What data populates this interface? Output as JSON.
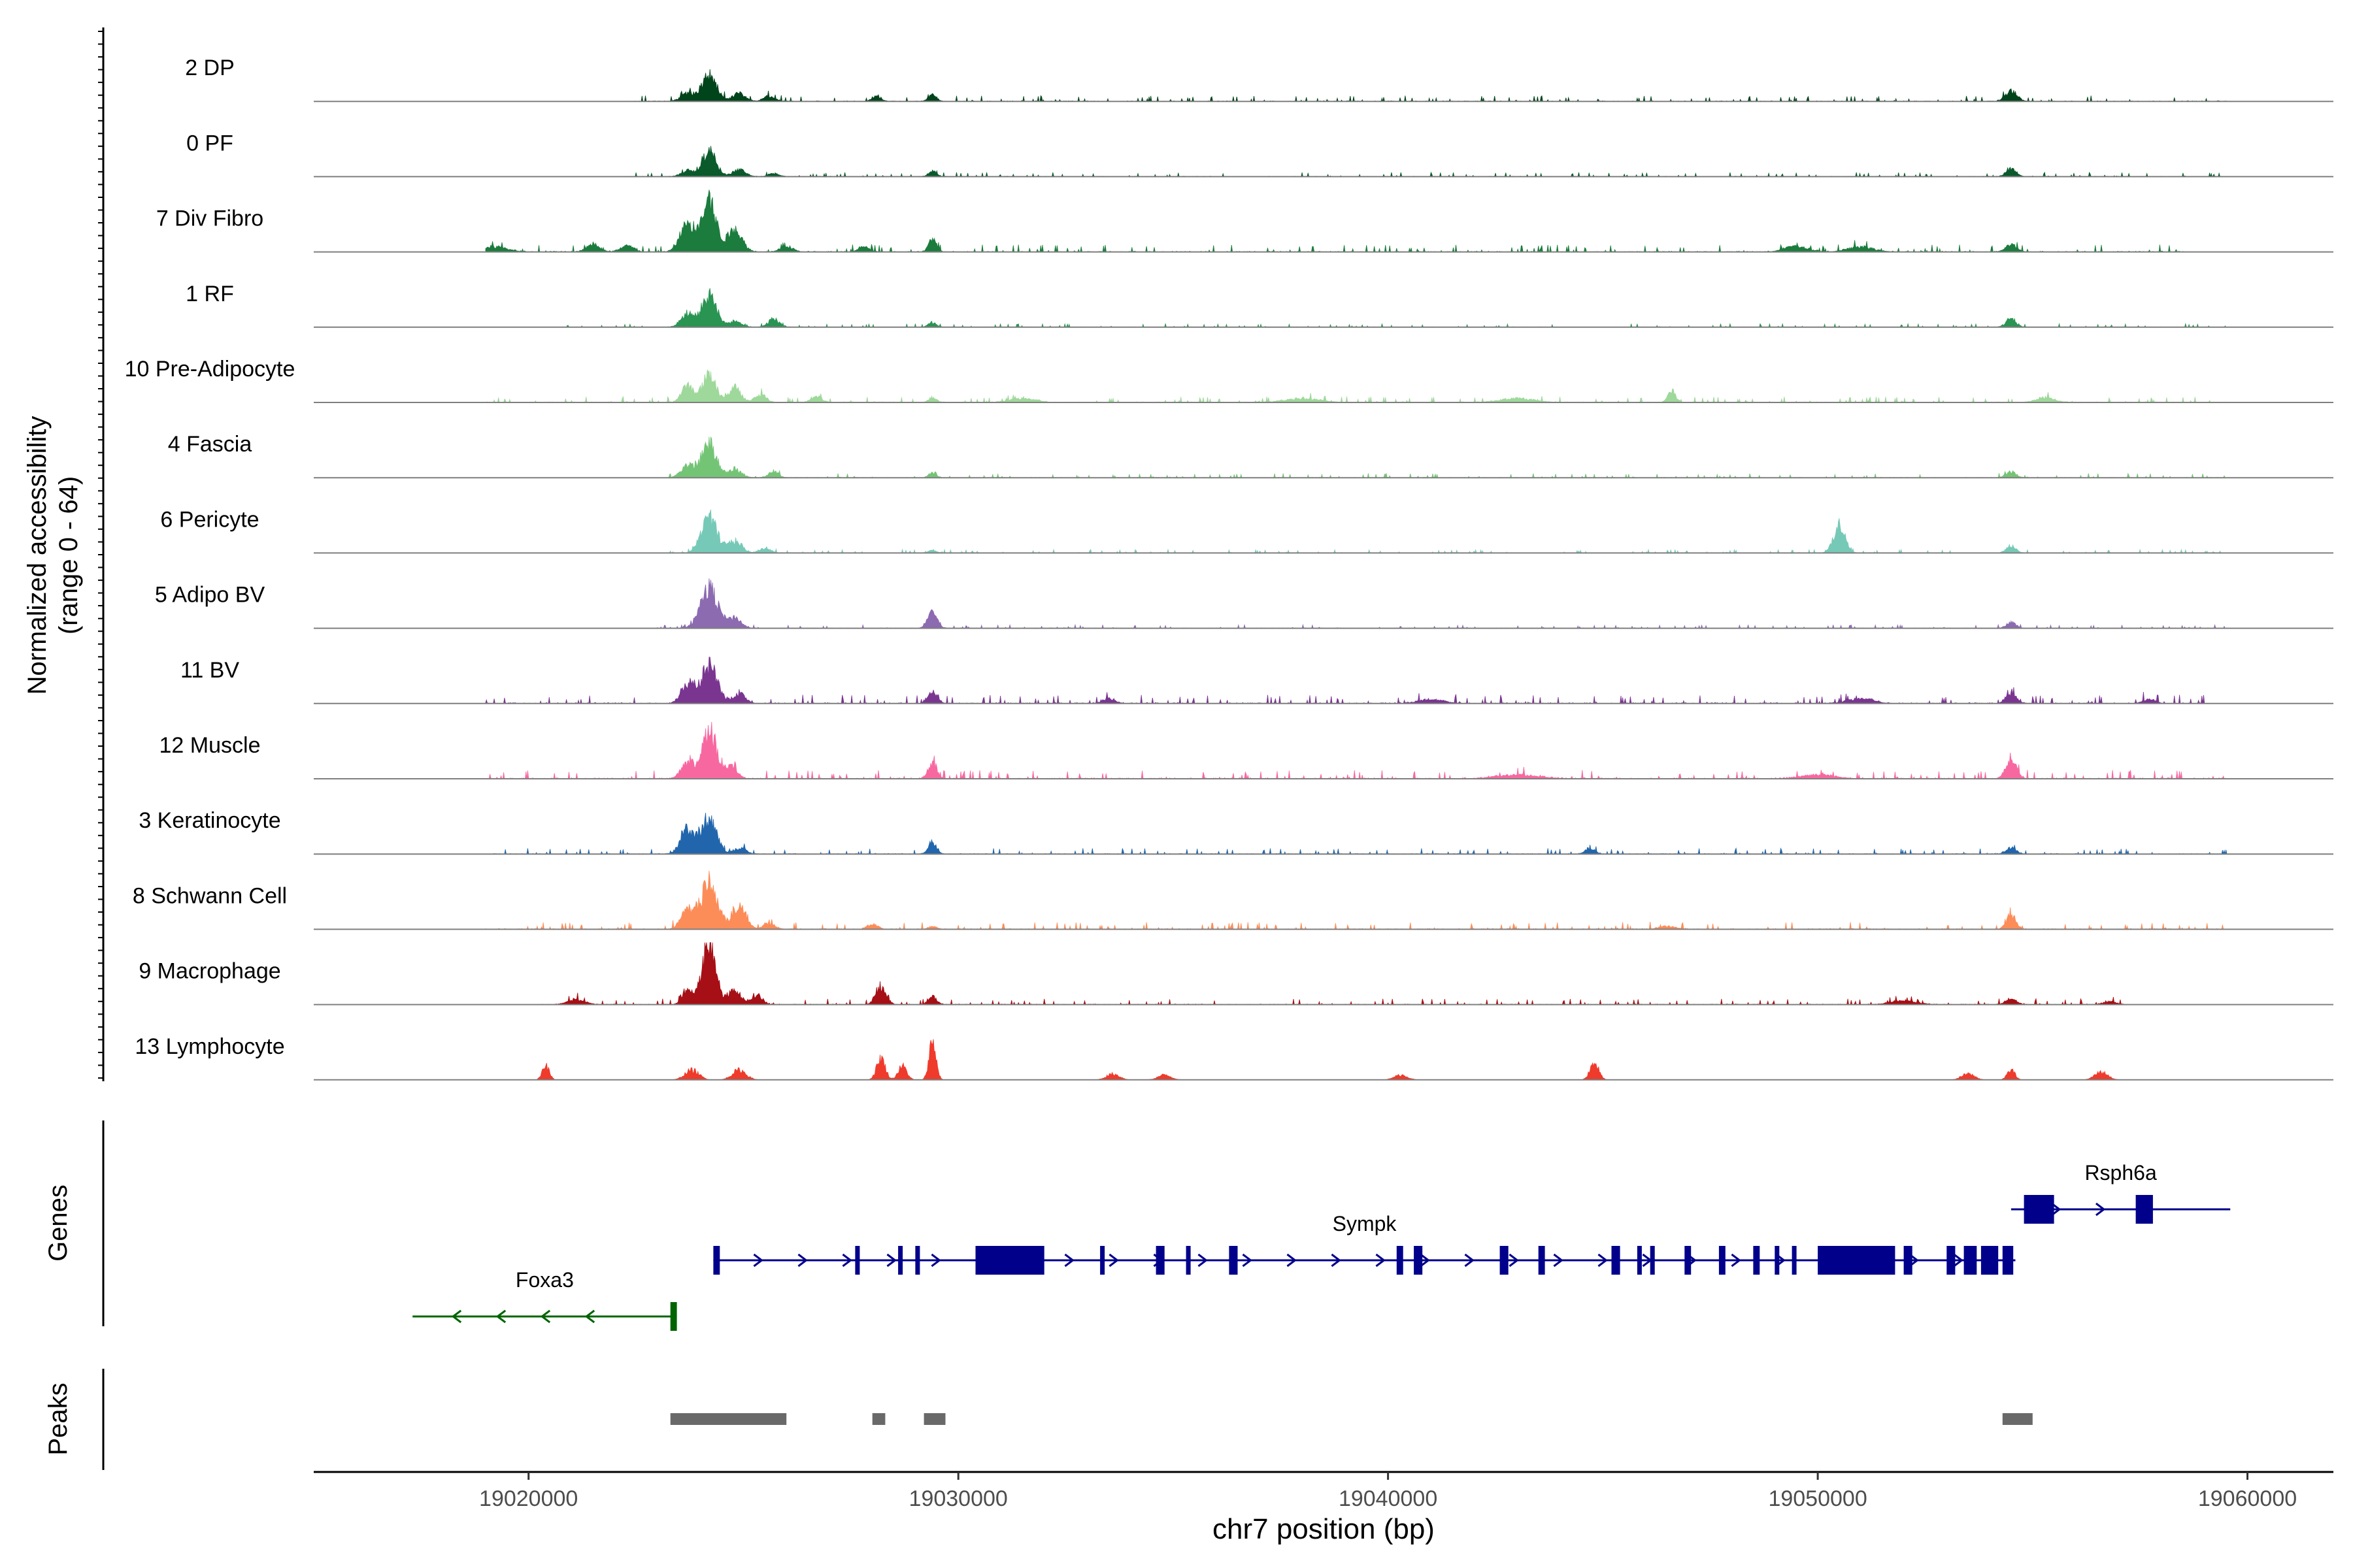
{
  "chart_data": {
    "type": "area",
    "title": "",
    "ylabel": [
      "Normalized accessibility",
      "(range 0 - 64)"
    ],
    "ylim": [
      0,
      64
    ],
    "xlabel": "chr7 position (bp)",
    "xlim": [
      19015000,
      19062000
    ],
    "xticks": [
      19020000,
      19030000,
      19040000,
      19050000,
      19060000
    ],
    "xtick_labels": [
      "19020000",
      "19030000",
      "19040000",
      "19050000",
      "19060000"
    ],
    "tracks": [
      {
        "label": "2 DP",
        "color": "#00441b",
        "noise": 2,
        "lowSpan": [
          19022300,
          19059500
        ],
        "peaks": [
          [
            19024200,
            28,
            170
          ],
          [
            19023700,
            8,
            150
          ],
          [
            19024900,
            8,
            150
          ],
          [
            19025600,
            5,
            130
          ],
          [
            19028100,
            5,
            110
          ],
          [
            19029400,
            7,
            90
          ],
          [
            19054500,
            11,
            130
          ]
        ]
      },
      {
        "label": "0 PF",
        "color": "#0a5a2c",
        "noise": 1.5,
        "lowSpan": [
          19022000,
          19059500
        ],
        "peaks": [
          [
            19024200,
            26,
            160
          ],
          [
            19023700,
            6,
            150
          ],
          [
            19024900,
            7,
            150
          ],
          [
            19025700,
            3,
            120
          ],
          [
            19029400,
            6,
            90
          ],
          [
            19054500,
            8,
            120
          ]
        ]
      },
      {
        "label": "7 Div Fibro",
        "color": "#1b7c3d",
        "noise": 2.5,
        "lowSpan": [
          19017300,
          19058500
        ],
        "peaks": [
          [
            19024200,
            50,
            170
          ],
          [
            19023700,
            28,
            170
          ],
          [
            19024800,
            22,
            170
          ],
          [
            19018000,
            4,
            300
          ],
          [
            19019200,
            5,
            300
          ],
          [
            19021500,
            8,
            150
          ],
          [
            19022300,
            6,
            150
          ],
          [
            19026000,
            5,
            150
          ],
          [
            19027800,
            5,
            120
          ],
          [
            19029400,
            12,
            90
          ],
          [
            19049500,
            6,
            250
          ],
          [
            19051000,
            5,
            300
          ],
          [
            19054500,
            7,
            130
          ]
        ]
      },
      {
        "label": "1 RF",
        "color": "#2a9453",
        "noise": 1.2,
        "lowSpan": [
          19020500,
          19059500
        ],
        "peaks": [
          [
            19024200,
            32,
            170
          ],
          [
            19023700,
            14,
            150
          ],
          [
            19025700,
            8,
            130
          ],
          [
            19024800,
            6,
            150
          ],
          [
            19029400,
            5,
            90
          ],
          [
            19054500,
            8,
            120
          ]
        ]
      },
      {
        "label": "10 Pre-Adipocyte",
        "color": "#9ed89a",
        "noise": 2,
        "lowSpan": [
          19019000,
          19059500
        ],
        "peaks": [
          [
            19024200,
            30,
            150
          ],
          [
            19023700,
            18,
            130
          ],
          [
            19024800,
            15,
            140
          ],
          [
            19025400,
            8,
            130
          ],
          [
            19026700,
            6,
            120
          ],
          [
            19029400,
            5,
            90
          ],
          [
            19046600,
            12,
            90
          ],
          [
            19055300,
            5,
            200
          ],
          [
            19031500,
            4,
            300
          ],
          [
            19038000,
            4,
            400
          ],
          [
            19043000,
            4,
            400
          ]
        ]
      },
      {
        "label": "4 Fascia",
        "color": "#74c476",
        "noise": 1.5,
        "lowSpan": [
          19023000,
          19059500
        ],
        "peaks": [
          [
            19024200,
            34,
            170
          ],
          [
            19023700,
            12,
            150
          ],
          [
            19024800,
            9,
            150
          ],
          [
            19025700,
            6,
            120
          ],
          [
            19029400,
            5,
            90
          ],
          [
            19054500,
            6,
            120
          ]
        ]
      },
      {
        "label": "6 Pericyte",
        "color": "#77c9b7",
        "noise": 1.2,
        "lowSpan": [
          19023000,
          19059500
        ],
        "peaks": [
          [
            19024200,
            36,
            180
          ],
          [
            19024800,
            12,
            160
          ],
          [
            19025500,
            5,
            130
          ],
          [
            19050500,
            28,
            130
          ],
          [
            19054500,
            7,
            110
          ],
          [
            19029400,
            3,
            90
          ]
        ]
      },
      {
        "label": "5 Adipo BV",
        "color": "#8c6bb1",
        "noise": 1.2,
        "lowSpan": [
          19023000,
          19059500
        ],
        "peaks": [
          [
            19024200,
            40,
            200
          ],
          [
            19024800,
            10,
            150
          ],
          [
            19029400,
            16,
            110
          ],
          [
            19054500,
            6,
            110
          ]
        ]
      },
      {
        "label": "11 BV",
        "color": "#7a3591",
        "noise": 3,
        "lowSpan": [
          19017500,
          19059000
        ],
        "peaks": [
          [
            19024200,
            38,
            190
          ],
          [
            19023700,
            20,
            150
          ],
          [
            19024900,
            10,
            150
          ],
          [
            19029400,
            12,
            110
          ],
          [
            19054500,
            10,
            120
          ],
          [
            19018500,
            4,
            250
          ],
          [
            19033500,
            5,
            150
          ],
          [
            19041000,
            4,
            300
          ],
          [
            19051000,
            5,
            300
          ],
          [
            19057700,
            4,
            150
          ]
        ]
      },
      {
        "label": "12 Muscle",
        "color": "#f768a1",
        "noise": 3,
        "lowSpan": [
          19017000,
          19059500
        ],
        "peaks": [
          [
            19024200,
            52,
            160
          ],
          [
            19023700,
            18,
            140
          ],
          [
            19024700,
            12,
            150
          ],
          [
            19029400,
            16,
            100
          ],
          [
            19054500,
            22,
            120
          ],
          [
            19018500,
            8,
            80
          ],
          [
            19043000,
            4,
            500
          ],
          [
            19050000,
            4,
            400
          ]
        ]
      },
      {
        "label": "3 Keratinocyte",
        "color": "#2166ac",
        "noise": 2,
        "lowSpan": [
          19017000,
          19059500
        ],
        "peaks": [
          [
            19024200,
            36,
            170
          ],
          [
            19023700,
            25,
            160
          ],
          [
            19024900,
            6,
            150
          ],
          [
            19029400,
            12,
            100
          ],
          [
            19044700,
            5,
            120
          ],
          [
            19054500,
            6,
            120
          ]
        ]
      },
      {
        "label": "8 Schwann Cell",
        "color": "#fc8d59",
        "noise": 2.5,
        "lowSpan": [
          19019000,
          19059500
        ],
        "peaks": [
          [
            19024200,
            44,
            200
          ],
          [
            19023700,
            18,
            160
          ],
          [
            19024900,
            22,
            160
          ],
          [
            19025600,
            6,
            130
          ],
          [
            19028000,
            5,
            120
          ],
          [
            19029400,
            3,
            90
          ],
          [
            19054500,
            14,
            110
          ],
          [
            19046500,
            3,
            200
          ]
        ]
      },
      {
        "label": "9 Macrophage",
        "color": "#a50f15",
        "noise": 2,
        "lowSpan": [
          19020300,
          19057200
        ],
        "peaks": [
          [
            19024200,
            64,
            160
          ],
          [
            19023700,
            14,
            120
          ],
          [
            19024800,
            14,
            140
          ],
          [
            19025300,
            10,
            130
          ],
          [
            19028200,
            18,
            120
          ],
          [
            19029400,
            8,
            100
          ],
          [
            19021100,
            5,
            200
          ],
          [
            19054500,
            6,
            120
          ],
          [
            19052000,
            4,
            300
          ],
          [
            19056800,
            3,
            150
          ]
        ]
      },
      {
        "label": "13 Lymphocyte",
        "color": "#ef3b2c",
        "noise": 0,
        "lowSpan": [
          19020000,
          19057000
        ],
        "peaks": [
          [
            19029400,
            40,
            80
          ],
          [
            19028200,
            22,
            100
          ],
          [
            19028700,
            14,
            100
          ],
          [
            19020400,
            14,
            80
          ],
          [
            19023800,
            10,
            160
          ],
          [
            19024900,
            10,
            160
          ],
          [
            19033600,
            6,
            150
          ],
          [
            19034800,
            5,
            150
          ],
          [
            19040300,
            5,
            150
          ],
          [
            19044800,
            18,
            100
          ],
          [
            19054500,
            10,
            90
          ],
          [
            19053500,
            6,
            150
          ],
          [
            19056600,
            8,
            150
          ]
        ]
      }
    ],
    "genes_label": "Genes",
    "genes": [
      {
        "name": "Foxa3",
        "strand": "-",
        "start": 19017300,
        "end": 19023450,
        "row": 2,
        "color": "#006400",
        "exons": [
          [
            19023300,
            19023450
          ]
        ]
      },
      {
        "name": "Sympk",
        "strand": "+",
        "start": 19024300,
        "end": 19054600,
        "row": 1,
        "color": "#00008b",
        "exons": [
          [
            19024300,
            19024450
          ],
          [
            19027600,
            19027700
          ],
          [
            19028600,
            19028700
          ],
          [
            19029000,
            19029100
          ],
          [
            19030400,
            19032000
          ],
          [
            19033300,
            19033400
          ],
          [
            19034600,
            19034800
          ],
          [
            19035300,
            19035400
          ],
          [
            19036300,
            19036500
          ],
          [
            19040200,
            19040350
          ],
          [
            19040600,
            19040800
          ],
          [
            19042600,
            19042800
          ],
          [
            19043500,
            19043650
          ],
          [
            19045200,
            19045400
          ],
          [
            19045800,
            19045900
          ],
          [
            19046100,
            19046200
          ],
          [
            19046900,
            19047050
          ],
          [
            19047700,
            19047850
          ],
          [
            19048500,
            19048650
          ],
          [
            19049000,
            19049100
          ],
          [
            19049400,
            19049500
          ],
          [
            19050000,
            19051800
          ],
          [
            19052000,
            19052200
          ],
          [
            19053000,
            19053200
          ],
          [
            19053400,
            19053700
          ],
          [
            19053800,
            19054200
          ],
          [
            19054300,
            19054550
          ]
        ]
      },
      {
        "name": "Rsph6a",
        "strand": "+",
        "start": 19054500,
        "end": 19059600,
        "row": 0,
        "color": "#00008b",
        "exons": [
          [
            19054800,
            19055500
          ],
          [
            19057400,
            19057800
          ]
        ]
      }
    ],
    "peaks_label": "Peaks",
    "peak_color": "#696969",
    "peak_regions": [
      [
        19023300,
        19026000
      ],
      [
        19028000,
        19028300
      ],
      [
        19029200,
        19029700
      ],
      [
        19054300,
        19055000
      ]
    ]
  }
}
